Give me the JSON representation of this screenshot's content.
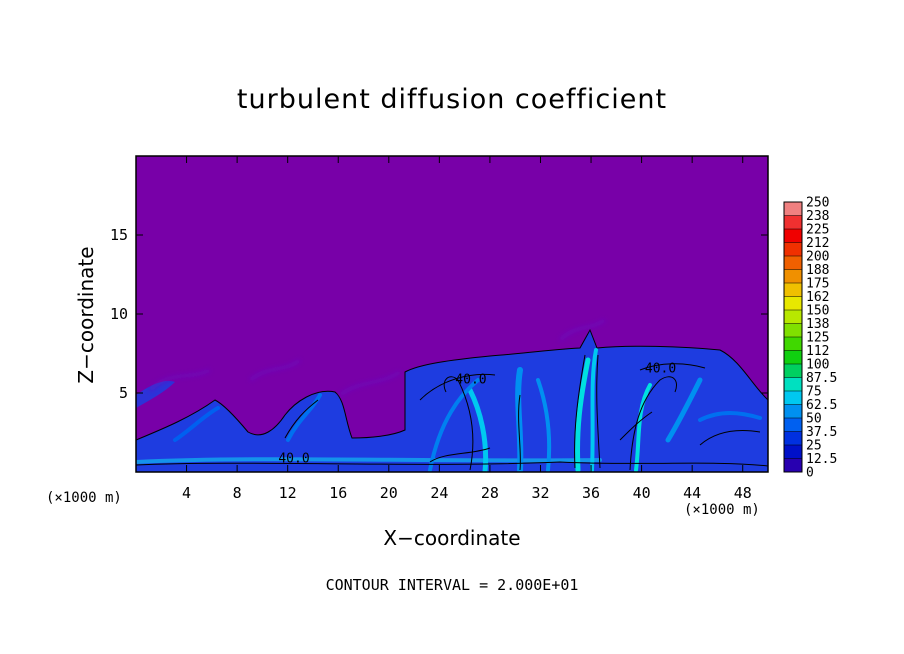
{
  "chart_data": {
    "type": "heatmap",
    "title": "turbulent diffusion coefficient",
    "xlabel": "X−coordinate",
    "ylabel": "Z−coordinate",
    "x_unit_left": "(×1000 m)",
    "x_unit_right": "(×1000 m)",
    "footer": "CONTOUR INTERVAL = 2.000E+01",
    "xlim": [
      0,
      50
    ],
    "ylim": [
      0,
      20
    ],
    "x_ticks": [
      4,
      8,
      12,
      16,
      20,
      24,
      28,
      32,
      36,
      40,
      44,
      48
    ],
    "y_ticks": [
      5,
      10,
      15
    ],
    "contour_labels": [
      {
        "text": "40.0",
        "x": 12.5,
        "z": 0.6
      },
      {
        "text": "40.0",
        "x": 26.5,
        "z": 5.6
      },
      {
        "text": "40.0",
        "x": 41.5,
        "z": 6.3
      }
    ],
    "colorbar": {
      "labels": [
        "250",
        "238",
        "225",
        "212",
        "200",
        "188",
        "175",
        "162",
        "150",
        "138",
        "125",
        "112",
        "100",
        "87.5",
        "75",
        "62.5",
        "50",
        "37.5",
        "25",
        "12.5",
        "0"
      ],
      "colors": [
        "#f08080",
        "#f03030",
        "#f00000",
        "#f03000",
        "#f06000",
        "#f09000",
        "#f0c000",
        "#e8e800",
        "#b8e800",
        "#80e000",
        "#40d800",
        "#10d010",
        "#00d060",
        "#00e0c0",
        "#00c8f0",
        "#0090f0",
        "#0060f0",
        "#0030e0",
        "#0010c8",
        "#2800b0",
        "#7800a8"
      ]
    }
  }
}
